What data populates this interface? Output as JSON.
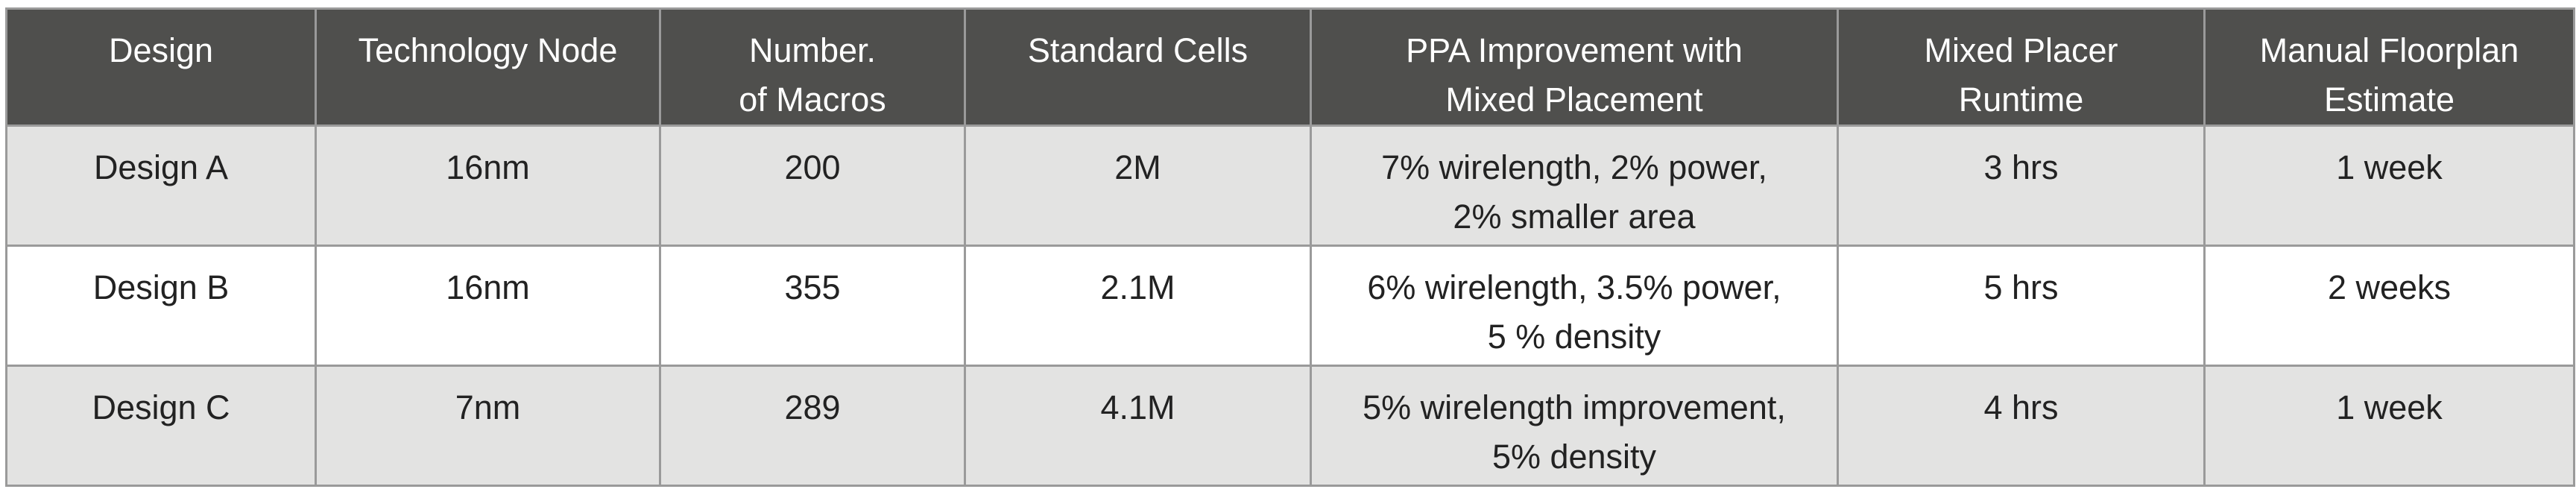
{
  "table": {
    "headers": [
      [
        "Design"
      ],
      [
        "Technology Node"
      ],
      [
        "Number.",
        "of Macros"
      ],
      [
        "Standard Cells"
      ],
      [
        "PPA Improvement with",
        "Mixed Placement"
      ],
      [
        "Mixed Placer",
        "Runtime"
      ],
      [
        "Manual Floorplan",
        "Estimate"
      ]
    ],
    "rows": [
      [
        [
          "Design A"
        ],
        [
          "16nm"
        ],
        [
          "200"
        ],
        [
          "2M"
        ],
        [
          "7% wirelength, 2% power,",
          "2% smaller area"
        ],
        [
          "3 hrs"
        ],
        [
          "1 week"
        ]
      ],
      [
        [
          "Design B"
        ],
        [
          "16nm"
        ],
        [
          "355"
        ],
        [
          "2.1M"
        ],
        [
          "6% wirelength, 3.5% power,",
          "5 % density"
        ],
        [
          "5 hrs"
        ],
        [
          "2 weeks"
        ]
      ],
      [
        [
          "Design C"
        ],
        [
          "7nm"
        ],
        [
          "289"
        ],
        [
          "4.1M"
        ],
        [
          "5% wirelength improvement,",
          "5% density"
        ],
        [
          "4 hrs"
        ],
        [
          "1 week"
        ]
      ]
    ]
  },
  "colors": {
    "header_bg": "#4f4f4d",
    "row_alt_bg": "#e3e3e2",
    "border": "#9a9a9a"
  }
}
